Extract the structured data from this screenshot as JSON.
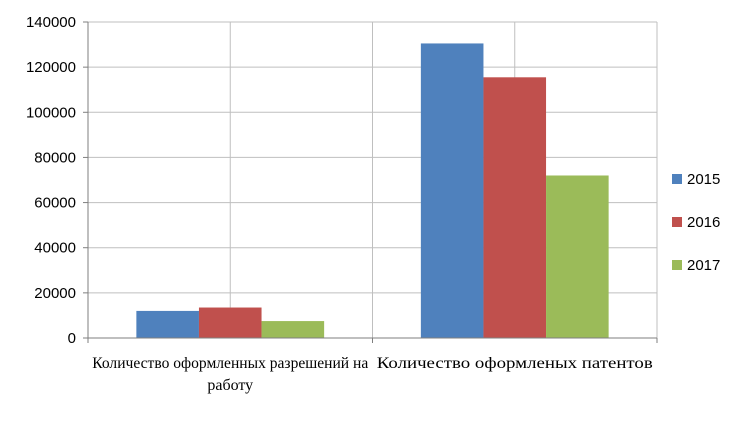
{
  "chart_data": {
    "type": "bar",
    "title": "",
    "xlabel": "",
    "ylabel": "",
    "categories": [
      [
        "Количество оформленных разрешений на",
        "работу"
      ],
      [
        "Количество оформленых патентов"
      ]
    ],
    "series": [
      {
        "name": "2015",
        "color": "#4F81BD",
        "values": [
          12000,
          130500
        ]
      },
      {
        "name": "2016",
        "color": "#C0504D",
        "values": [
          13500,
          115500
        ]
      },
      {
        "name": "2017",
        "color": "#9BBB59",
        "values": [
          7500,
          72000
        ]
      }
    ],
    "ylim": [
      0,
      140000
    ],
    "yticks": [
      "0",
      "20000",
      "40000",
      "60000",
      "80000",
      "100000",
      "120000",
      "140000"
    ],
    "grid": true,
    "legend_position": "right"
  }
}
